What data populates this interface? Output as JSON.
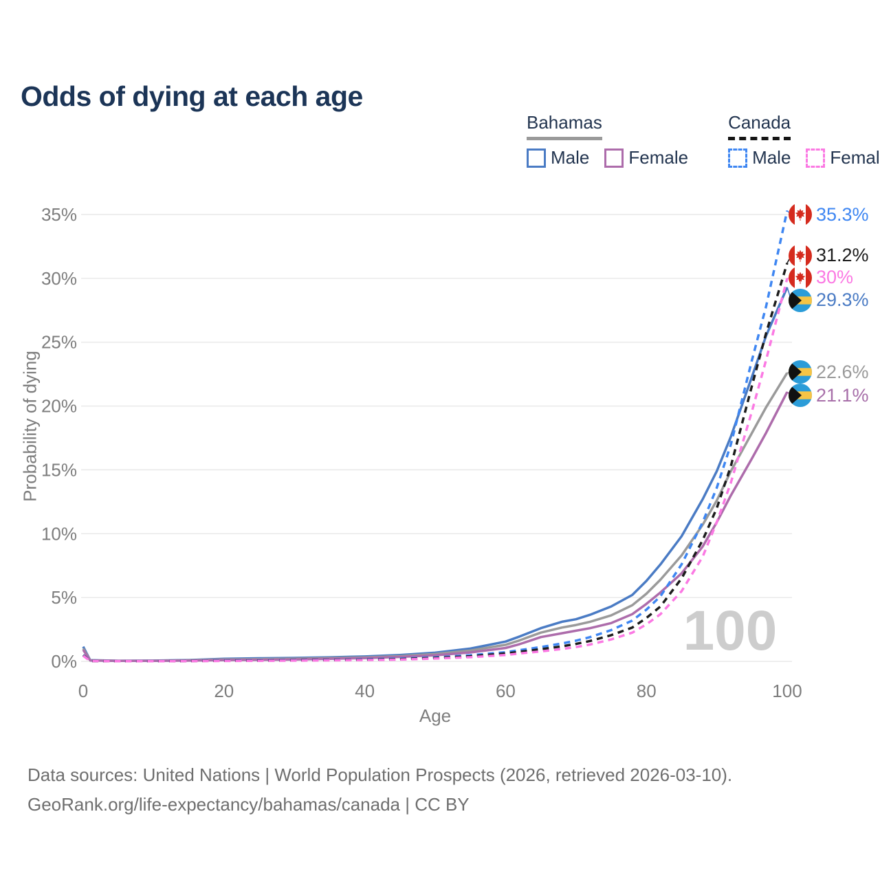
{
  "title": "Odds of dying at each age",
  "legend": {
    "groups": [
      {
        "name": "Bahamas",
        "line_style": "solid",
        "underline_color": "#9a9a9a",
        "items": [
          {
            "label": "Male",
            "color": "#4a7bc4"
          },
          {
            "label": "Female",
            "color": "#ad6cab"
          }
        ]
      },
      {
        "name": "Canada",
        "line_style": "dashed",
        "underline_color": "#151515",
        "items": [
          {
            "label": "Male",
            "color": "#3e86f2"
          },
          {
            "label": "Female",
            "color": "#fb79e3"
          }
        ]
      }
    ]
  },
  "watermark": "100",
  "chart_data": {
    "type": "line",
    "title": "Odds of dying at each age",
    "xlabel": "Age",
    "ylabel": "Probability of dying",
    "xlim": [
      0,
      100
    ],
    "ylim_percent": [
      0,
      35
    ],
    "x_ticks": [
      0,
      20,
      40,
      60,
      80,
      100
    ],
    "y_ticks_percent": [
      0,
      5,
      10,
      15,
      20,
      25,
      30,
      35
    ],
    "grid": "horizontal",
    "legend_position": "top-right",
    "x": [
      0,
      1,
      5,
      10,
      15,
      20,
      25,
      30,
      35,
      40,
      45,
      50,
      55,
      60,
      62,
      65,
      68,
      70,
      72,
      75,
      78,
      80,
      82,
      85,
      88,
      90,
      92,
      95,
      97,
      100
    ],
    "series": [
      {
        "name": "Bahamas Male",
        "country": "Bahamas",
        "sex": "male",
        "color": "#4a7bc4",
        "dash": false,
        "flag": "bahamas",
        "end_value": 29.3,
        "end_label": "29.3%",
        "label_color": "#4a7bc4",
        "label_dy": 19,
        "values": [
          1.15,
          0.09,
          0.05,
          0.06,
          0.1,
          0.2,
          0.24,
          0.27,
          0.32,
          0.38,
          0.5,
          0.68,
          1.0,
          1.55,
          1.95,
          2.6,
          3.1,
          3.3,
          3.65,
          4.3,
          5.2,
          6.3,
          7.6,
          9.8,
          12.7,
          14.9,
          17.6,
          22.3,
          25.5,
          29.3
        ]
      },
      {
        "name": "Bahamas",
        "country": "Bahamas",
        "sex": "all",
        "color": "#9a9a9a",
        "dash": false,
        "flag": "bahamas",
        "end_value": 22.6,
        "end_label": "22.6%",
        "label_color": "#9a9a9a",
        "label_dy": -1,
        "values": [
          1.0,
          0.08,
          0.045,
          0.05,
          0.08,
          0.15,
          0.18,
          0.21,
          0.26,
          0.31,
          0.42,
          0.58,
          0.85,
          1.3,
          1.65,
          2.25,
          2.65,
          2.85,
          3.1,
          3.6,
          4.4,
          5.3,
          6.4,
          8.3,
          10.7,
          12.6,
          14.9,
          17.9,
          19.9,
          22.6
        ]
      },
      {
        "name": "Bahamas Female",
        "country": "Bahamas",
        "sex": "female",
        "color": "#ad6cab",
        "dash": false,
        "flag": "bahamas",
        "end_value": 21.1,
        "end_label": "21.1%",
        "label_color": "#a76fa9",
        "label_dy": 5,
        "values": [
          0.9,
          0.07,
          0.04,
          0.045,
          0.06,
          0.1,
          0.12,
          0.15,
          0.2,
          0.26,
          0.35,
          0.48,
          0.7,
          1.05,
          1.35,
          1.9,
          2.2,
          2.4,
          2.6,
          3.0,
          3.7,
          4.5,
          5.4,
          6.9,
          9.0,
          10.9,
          13.0,
          15.9,
          17.9,
          21.1
        ]
      },
      {
        "name": "Canada Male",
        "country": "Canada",
        "sex": "male",
        "color": "#3e86f2",
        "dash": true,
        "flag": "canada",
        "end_value": 35.3,
        "end_label": "35.3%",
        "label_color": "#3e86f2",
        "label_dy": 6,
        "values": [
          0.5,
          0.03,
          0.012,
          0.012,
          0.03,
          0.07,
          0.09,
          0.1,
          0.12,
          0.16,
          0.22,
          0.32,
          0.48,
          0.72,
          0.88,
          1.12,
          1.4,
          1.62,
          1.9,
          2.45,
          3.2,
          4.05,
          5.1,
          7.6,
          10.9,
          13.6,
          17.0,
          23.6,
          27.8,
          35.3
        ]
      },
      {
        "name": "Canada",
        "country": "Canada",
        "sex": "all",
        "color": "#1c1c1c",
        "dash": true,
        "flag": "canada",
        "end_value": 31.2,
        "end_label": "31.2%",
        "label_color": "#1c1c1c",
        "label_dy": -11,
        "values": [
          0.48,
          0.028,
          0.011,
          0.011,
          0.026,
          0.05,
          0.065,
          0.08,
          0.1,
          0.13,
          0.18,
          0.27,
          0.4,
          0.62,
          0.75,
          0.95,
          1.18,
          1.37,
          1.6,
          2.05,
          2.65,
          3.4,
          4.3,
          6.5,
          9.5,
          12.0,
          15.3,
          21.6,
          25.7,
          31.2
        ]
      },
      {
        "name": "Canada Female",
        "country": "Canada",
        "sex": "female",
        "color": "#fb79e3",
        "dash": true,
        "flag": "canada",
        "end_value": 30.0,
        "end_label": "30%",
        "label_color": "#fb79e3",
        "label_dy": -1,
        "values": [
          0.44,
          0.025,
          0.01,
          0.01,
          0.022,
          0.035,
          0.045,
          0.06,
          0.08,
          0.1,
          0.14,
          0.22,
          0.33,
          0.5,
          0.62,
          0.78,
          0.97,
          1.12,
          1.32,
          1.72,
          2.25,
          2.9,
          3.7,
          5.5,
          8.2,
          10.9,
          14.0,
          19.6,
          23.6,
          30.0
        ]
      }
    ]
  },
  "footer": {
    "line1": "Data sources: United Nations | World Population Prospects (2026, retrieved 2026-03-10).",
    "line2": "GeoRank.org/life-expectancy/bahamas/canada | CC BY"
  },
  "flag_colors": {
    "canada_red": "#d52b1e",
    "bahamas_aqua": "#2b9cd8",
    "bahamas_gold": "#f6c445",
    "bahamas_black": "#111111"
  }
}
